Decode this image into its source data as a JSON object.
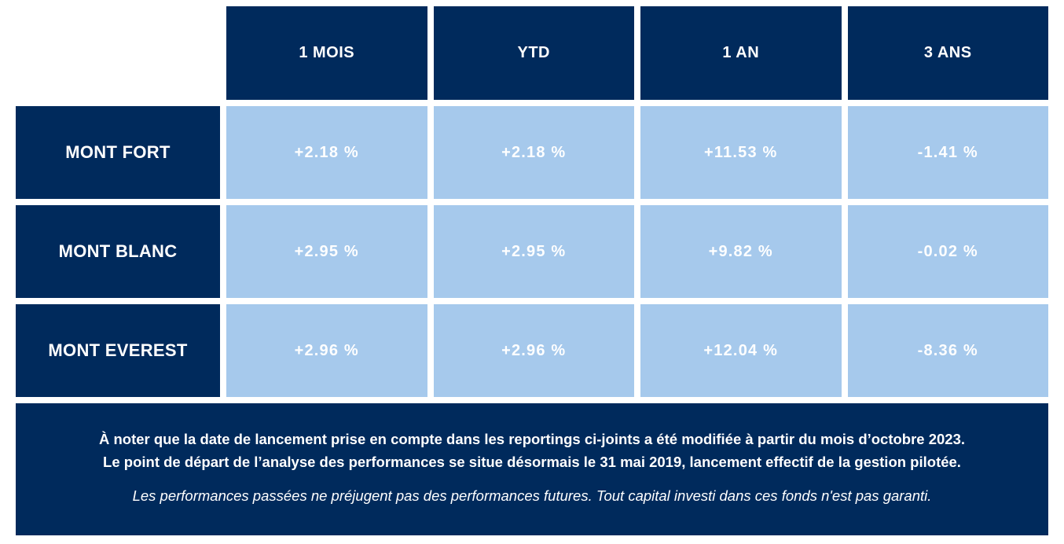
{
  "chart_data": {
    "type": "table",
    "unit": "%",
    "columns": [
      "1 MOIS",
      "YTD",
      "1 AN",
      "3 ANS"
    ],
    "rows": [
      "MONT FORT",
      "MONT BLANC",
      "MONT EVEREST"
    ],
    "values_pct": [
      [
        2.18,
        2.18,
        11.53,
        -1.41
      ],
      [
        2.95,
        2.95,
        9.82,
        -0.02
      ],
      [
        2.96,
        2.96,
        12.04,
        -8.36
      ]
    ],
    "cells_display": [
      [
        "+2.18 %",
        "+2.18 %",
        "+11.53 %",
        "-1.41 %"
      ],
      [
        "+2.95 %",
        "+2.95 %",
        "+9.82 %",
        "-0.02 %"
      ],
      [
        "+2.96 %",
        "+2.96 %",
        "+12.04 %",
        "-8.36 %"
      ]
    ]
  },
  "footer": {
    "note_line1": "À noter que la date de lancement prise en compte dans les reportings ci-joints a été modifiée à partir du mois d’octobre 2023.",
    "note_line2": "Le point de départ de l’analyse des performances se situe désormais le 31 mai 2019, lancement effectif de la gestion pilotée.",
    "disclaimer": "Les performances passées ne préjugent pas des performances futures. Tout capital investi dans ces fonds n'est pas garanti."
  },
  "colors": {
    "navy": "#002a5c",
    "light_blue": "#a6c9ec",
    "text_white": "#ffffff"
  }
}
